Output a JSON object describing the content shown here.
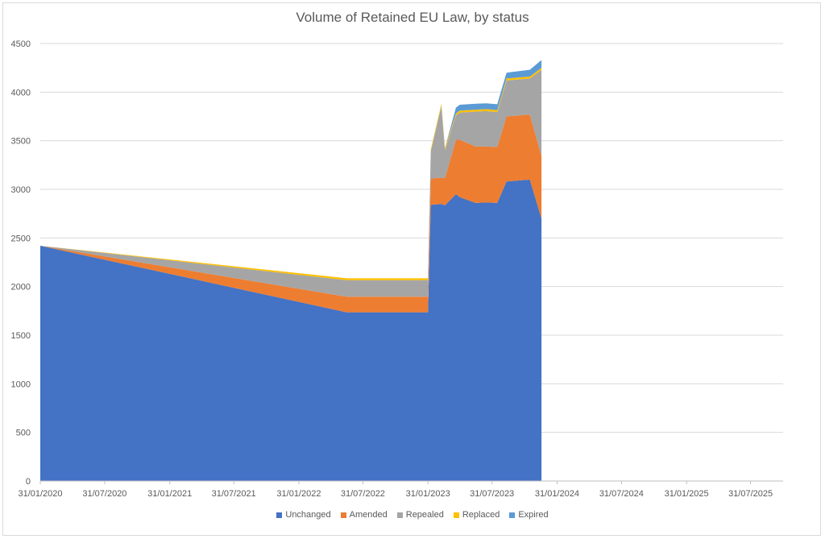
{
  "chart_data": {
    "type": "area",
    "stacked": true,
    "title": "Volume of Retained EU Law, by status",
    "xlabel": "",
    "ylabel": "",
    "ylim": [
      0,
      4500
    ],
    "yticks": [
      0,
      500,
      1000,
      1500,
      2000,
      2500,
      3000,
      3500,
      4000,
      4500
    ],
    "xlim": [
      "2020-01-31",
      "2025-10-31"
    ],
    "xticks": [
      "31/01/2020",
      "31/07/2020",
      "31/01/2021",
      "31/07/2021",
      "31/01/2022",
      "31/07/2022",
      "31/01/2023",
      "31/07/2023",
      "31/01/2024",
      "31/07/2024",
      "31/01/2025",
      "31/07/2025"
    ],
    "xtick_dates": [
      "2020-01-31",
      "2020-07-31",
      "2021-01-31",
      "2021-07-31",
      "2022-01-31",
      "2022-07-31",
      "2023-01-31",
      "2023-07-31",
      "2024-01-31",
      "2024-07-31",
      "2025-01-31",
      "2025-07-31"
    ],
    "grid": true,
    "legend_position": "bottom",
    "x": [
      "2020-01-31",
      "2022-06-15",
      "2023-01-31",
      "2023-02-08",
      "2023-03-10",
      "2023-03-20",
      "2023-04-20",
      "2023-05-01",
      "2023-06-15",
      "2023-07-15",
      "2023-08-15",
      "2023-09-10",
      "2023-11-15",
      "2023-12-18"
    ],
    "series": [
      {
        "name": "Unchanged",
        "color": "#4472C4",
        "values": [
          2420,
          1735,
          1735,
          2840,
          2850,
          2835,
          2950,
          2920,
          2860,
          2865,
          2860,
          3080,
          3100,
          2700
        ]
      },
      {
        "name": "Amended",
        "color": "#ED7D31",
        "values": [
          0,
          160,
          160,
          270,
          270,
          280,
          560,
          590,
          580,
          575,
          575,
          670,
          670,
          640
        ]
      },
      {
        "name": "Repealed",
        "color": "#A5A5A5",
        "values": [
          0,
          170,
          170,
          280,
          740,
          290,
          250,
          280,
          360,
          365,
          360,
          370,
          370,
          890
        ]
      },
      {
        "name": "Replaced",
        "color": "#FFC000",
        "values": [
          0,
          20,
          20,
          20,
          20,
          20,
          20,
          20,
          20,
          20,
          20,
          20,
          20,
          20
        ]
      },
      {
        "name": "Expired",
        "color": "#5B9BD5",
        "values": [
          0,
          0,
          0,
          0,
          0,
          0,
          60,
          60,
          60,
          60,
          60,
          60,
          70,
          80
        ]
      }
    ]
  }
}
